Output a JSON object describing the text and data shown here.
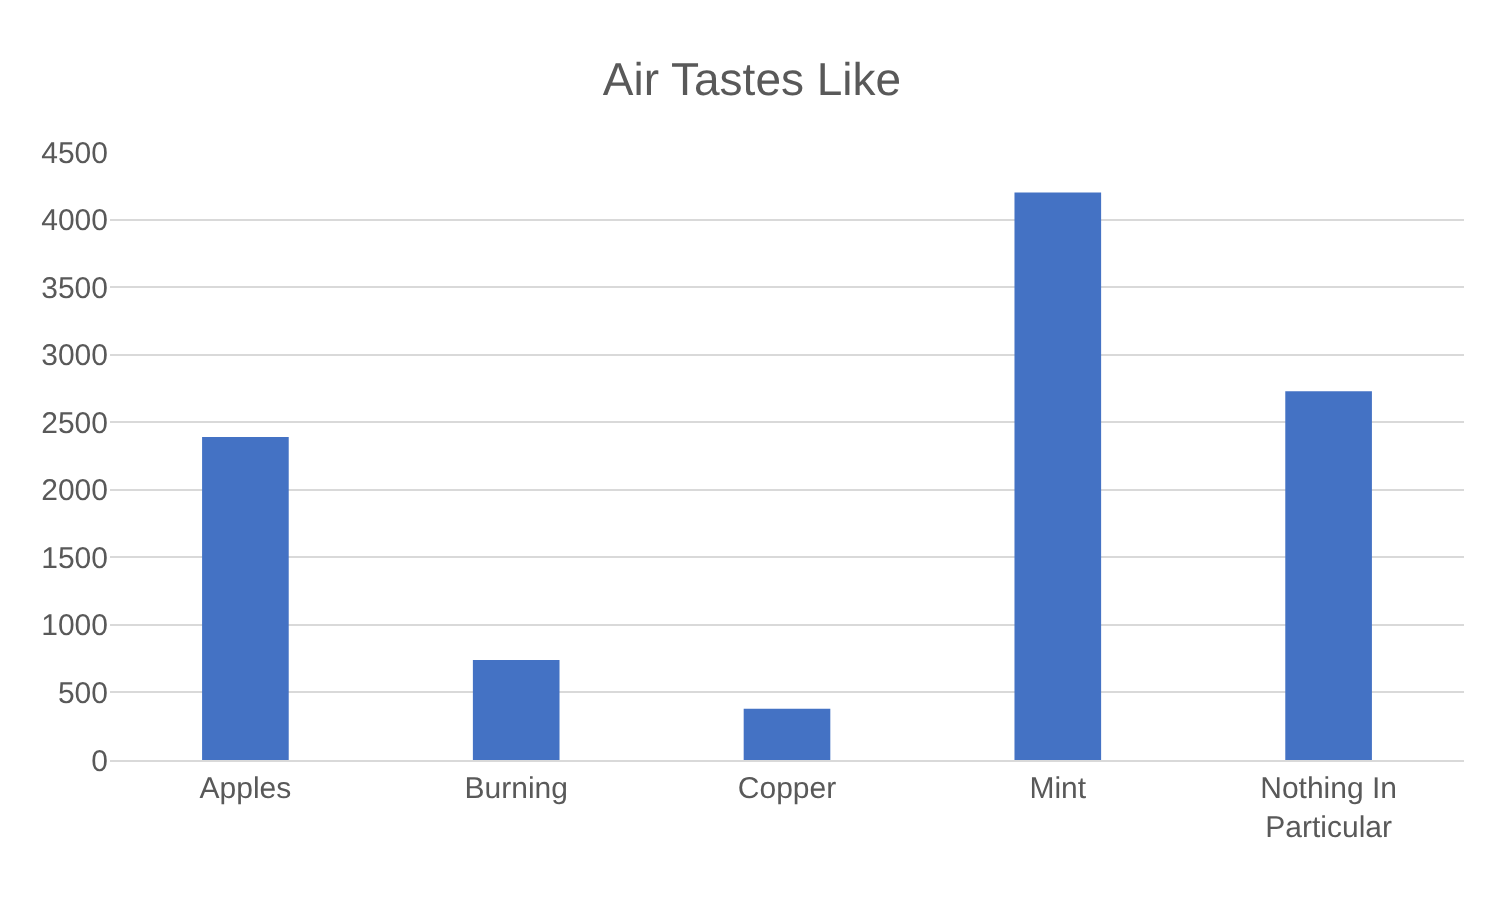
{
  "chart_data": {
    "type": "bar",
    "title": "Air Tastes Like",
    "categories": [
      "Apples",
      "Burning",
      "Copper",
      "Mint",
      "Nothing In Particular"
    ],
    "values": [
      2390,
      740,
      380,
      4200,
      2730
    ],
    "color": "#4472c4",
    "ylim": [
      0,
      4500
    ],
    "yticks": [
      0,
      500,
      1000,
      1500,
      2000,
      2500,
      3000,
      3500,
      4000,
      4500
    ],
    "grid": "y",
    "legend": false
  }
}
